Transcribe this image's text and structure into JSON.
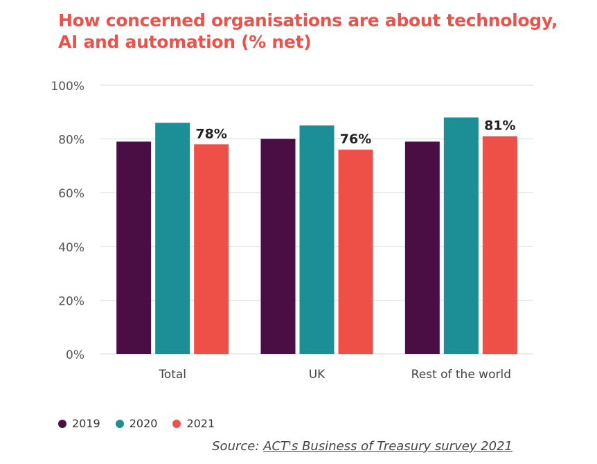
{
  "chart_data": {
    "type": "bar",
    "title_lines": [
      "How concerned organisations are about technology,",
      "AI and automation (% net)"
    ],
    "categories": [
      "Total",
      "UK",
      "Rest of the world"
    ],
    "series": [
      {
        "name": "2019",
        "values": [
          79,
          80,
          79
        ]
      },
      {
        "name": "2020",
        "values": [
          86,
          85,
          88
        ]
      },
      {
        "name": "2021",
        "values": [
          78,
          76,
          81
        ]
      }
    ],
    "data_labels": {
      "series": "2021",
      "labels": [
        "78%",
        "76%",
        "81%"
      ]
    },
    "y_ticks": [
      0,
      20,
      40,
      60,
      80,
      100
    ],
    "y_tick_labels": [
      "0%",
      "20%",
      "40%",
      "60%",
      "80%",
      "100%"
    ],
    "ylim": [
      0,
      100
    ],
    "grid": true,
    "legend_position": "bottom-left"
  },
  "colors": {
    "2019": "#4a0e45",
    "2020": "#1c8e96",
    "2021": "#ee5048",
    "title": "#e9534b",
    "grid": "#d9d9d9"
  },
  "source": {
    "prefix": "Source: ",
    "link_text": "ACT's Business of Treasury survey 2021"
  }
}
